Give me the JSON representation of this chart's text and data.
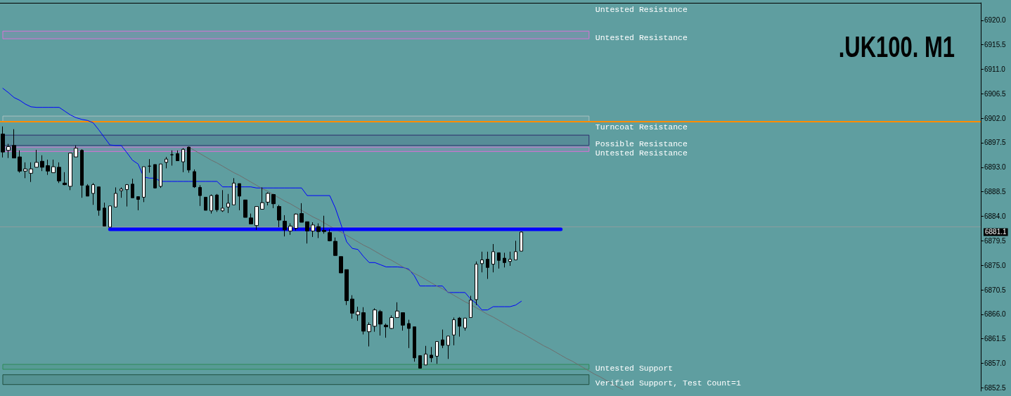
{
  "chart_data": {
    "type": "candlestick",
    "title": ".UK100. M1",
    "categories": [
      null,
      null,
      null,
      null,
      null,
      null,
      null,
      null,
      null,
      null,
      null,
      null,
      null,
      null,
      null,
      null,
      null,
      null,
      null,
      null,
      null,
      null,
      null,
      null,
      null,
      null,
      null,
      null,
      null,
      null,
      null,
      null,
      null,
      null,
      null,
      null,
      null,
      null,
      null,
      null,
      null,
      null,
      null,
      null,
      null,
      null,
      null,
      null,
      null,
      null,
      null,
      null,
      null,
      null,
      null,
      null,
      null,
      null,
      null,
      null,
      null,
      null,
      null,
      null,
      null,
      null,
      null,
      null,
      null,
      null,
      null,
      null,
      null,
      null,
      null,
      null,
      null,
      null,
      null,
      null,
      null,
      null,
      null,
      null,
      null,
      null,
      null,
      null,
      null,
      null,
      null,
      null,
      null,
      null,
      null,
      null,
      null,
      null,
      null,
      null,
      null,
      null,
      null,
      null,
      null,
      null,
      null,
      null,
      null,
      null,
      null,
      null,
      null,
      null,
      null,
      null,
      null,
      null,
      null,
      null,
      null,
      null,
      null,
      null,
      null,
      null,
      null,
      null,
      null,
      null,
      null,
      null,
      null,
      null,
      null,
      null,
      null,
      null,
      null,
      null,
      null,
      null,
      null,
      null,
      null,
      null,
      null,
      null,
      null,
      null,
      null,
      null,
      null,
      null,
      null,
      null,
      null,
      null,
      null,
      null,
      null,
      null,
      null,
      null,
      null,
      null,
      null,
      null,
      null,
      null,
      null,
      null,
      null,
      null
    ],
    "series": [
      {
        "ohlc": [
          [
            6899.1,
            6900.5,
            6894.8,
            6895.8
          ],
          [
            6896.1,
            6897.3,
            6894.7,
            6896.8
          ],
          [
            6897.0,
            6900.0,
            6894.7,
            6894.7
          ],
          [
            6894.9,
            6896.1,
            6892.0,
            6892.3
          ],
          [
            6892.3,
            6893.9,
            6891.0,
            6892.7
          ],
          [
            6891.9,
            6893.9,
            6890.3,
            6892.7
          ],
          [
            6893.0,
            6896.2,
            6893.0,
            6893.9
          ],
          [
            6894.1,
            6895.2,
            6892.3,
            6893.0
          ],
          [
            6893.3,
            6894.4,
            6891.6,
            6892.3
          ],
          [
            6892.0,
            6894.4,
            6892.0,
            6893.1
          ],
          [
            6893.0,
            6893.9,
            6890.1,
            6890.5
          ],
          [
            6890.1,
            6892.1,
            6889.7,
            6889.8
          ],
          [
            6889.5,
            6895.6,
            6888.8,
            6895.6
          ],
          [
            6894.9,
            6897.0,
            6894.9,
            6896.5
          ],
          [
            6896.1,
            6896.3,
            6887.4,
            6889.7
          ],
          [
            6889.6,
            6889.9,
            6887.7,
            6887.7
          ],
          [
            6888.2,
            6890.1,
            6886.1,
            6889.8
          ],
          [
            6889.4,
            6889.4,
            6884.1,
            6885.1
          ],
          [
            6885.5,
            6886.5,
            6882.2,
            6882.2
          ],
          [
            6882.0,
            6885.9,
            6882.0,
            6885.9
          ],
          [
            6885.7,
            6889.3,
            6885.7,
            6888.2
          ],
          [
            6888.7,
            6889.3,
            6887.4,
            6889.0
          ],
          [
            6888.9,
            6889.9,
            6885.8,
            6889.8
          ],
          [
            6889.9,
            6890.9,
            6887.4,
            6887.4
          ],
          [
            6887.6,
            6887.6,
            6885.1,
            6887.1
          ],
          [
            6887.5,
            6893.1,
            6886.6,
            6893.1
          ],
          [
            6893.2,
            6894.5,
            6892.0,
            6893.2
          ],
          [
            6893.5,
            6893.5,
            6889.1,
            6889.2
          ],
          [
            6889.5,
            6893.6,
            6889.2,
            6893.6
          ],
          [
            6893.9,
            6894.9,
            6892.8,
            6894.5
          ],
          [
            6895.3,
            6896.1,
            6893.3,
            6895.3
          ],
          [
            6895.5,
            6896.1,
            6894.2,
            6894.2
          ],
          [
            6894.0,
            6896.5,
            6892.1,
            6896.3
          ],
          [
            6896.7,
            6896.8,
            6892.0,
            6892.5
          ],
          [
            6892.2,
            6892.6,
            6889.2,
            6889.4
          ],
          [
            6889.3,
            6889.7,
            6885.9,
            6887.8
          ],
          [
            6887.5,
            6887.5,
            6885.1,
            6885.1
          ],
          [
            6885.0,
            6888.0,
            6884.5,
            6887.8
          ],
          [
            6887.9,
            6888.1,
            6884.8,
            6885.2
          ],
          [
            6885.0,
            6888.8,
            6884.8,
            6885.5
          ],
          [
            6885.7,
            6888.1,
            6884.6,
            6886.4
          ],
          [
            6886.1,
            6891.0,
            6886.1,
            6890.1
          ],
          [
            6890.0,
            6890.0,
            6885.1,
            6887.7
          ],
          [
            6887.0,
            6887.0,
            6883.8,
            6883.8
          ],
          [
            6883.7,
            6884.5,
            6882.6,
            6882.6
          ],
          [
            6882.3,
            6885.8,
            6881.5,
            6885.8
          ],
          [
            6885.3,
            6889.3,
            6885.3,
            6886.5
          ],
          [
            6886.6,
            6888.4,
            6886.0,
            6888.2
          ],
          [
            6888.0,
            6888.1,
            6885.5,
            6886.3
          ],
          [
            6885.8,
            6886.1,
            6882.0,
            6883.3
          ],
          [
            6883.1,
            6884.2,
            6880.3,
            6881.5
          ],
          [
            6881.3,
            6882.7,
            6880.6,
            6882.2
          ],
          [
            6881.8,
            6884.5,
            6881.4,
            6884.4
          ],
          [
            6884.5,
            6886.4,
            6882.9,
            6882.9
          ],
          [
            6883.0,
            6883.0,
            6879.0,
            6881.3
          ],
          [
            6881.3,
            6882.9,
            6880.2,
            6882.4
          ],
          [
            6882.1,
            6882.7,
            6880.0,
            6881.2
          ],
          [
            6881.4,
            6884.1,
            6880.8,
            6881.2
          ],
          [
            6881.0,
            6881.6,
            6879.4,
            6879.5
          ],
          [
            6879.4,
            6880.1,
            6876.8,
            6876.8
          ],
          [
            6876.6,
            6876.6,
            6873.6,
            6873.6
          ],
          [
            6874.2,
            6874.2,
            6867.7,
            6868.5
          ],
          [
            6868.8,
            6869.5,
            6865.2,
            6866.2
          ],
          [
            6865.9,
            6867.4,
            6864.8,
            6866.5
          ],
          [
            6866.3,
            6867.3,
            6862.3,
            6862.9
          ],
          [
            6862.8,
            6864.5,
            6860.1,
            6864.1
          ],
          [
            6863.8,
            6867.1,
            6862.8,
            6866.8
          ],
          [
            6866.5,
            6866.8,
            6862.1,
            6864.2
          ],
          [
            6864.0,
            6864.3,
            6861.7,
            6863.7
          ],
          [
            6863.4,
            6865.8,
            6863.3,
            6865.4
          ],
          [
            6865.4,
            6868.2,
            6865.4,
            6866.6
          ],
          [
            6866.3,
            6866.3,
            6863.0,
            6864.0
          ],
          [
            6864.3,
            6865.0,
            6859.8,
            6863.4
          ],
          [
            6863.7,
            6863.7,
            6857.3,
            6858.0
          ],
          [
            6858.4,
            6858.4,
            6856.1,
            6856.1
          ],
          [
            6856.7,
            6860.2,
            6856.7,
            6858.7
          ],
          [
            6858.5,
            6860.0,
            6857.2,
            6858.0
          ],
          [
            6858.3,
            6861.0,
            6856.9,
            6861.0
          ],
          [
            6861.3,
            6863.2,
            6859.8,
            6860.3
          ],
          [
            6860.3,
            6862.0,
            6857.8,
            6862.0
          ],
          [
            6862.2,
            6865.4,
            6860.3,
            6865.0
          ],
          [
            6865.3,
            6865.5,
            6861.9,
            6863.8
          ],
          [
            6863.5,
            6865.3,
            6863.0,
            6865.3
          ],
          [
            6865.4,
            6869.4,
            6865.4,
            6868.6
          ],
          [
            6868.7,
            6875.7,
            6867.7,
            6875.2
          ],
          [
            6875.3,
            6877.5,
            6873.7,
            6876.0
          ],
          [
            6876.1,
            6877.5,
            6872.5,
            6874.6
          ],
          [
            6875.2,
            6878.9,
            6873.7,
            6877.5
          ],
          [
            6877.3,
            6877.3,
            6874.4,
            6875.9
          ],
          [
            6876.3,
            6877.3,
            6874.6,
            6875.5
          ],
          [
            6875.7,
            6877.5,
            6874.9,
            6876.1
          ],
          [
            6876.0,
            6879.5,
            6876.0,
            6877.5
          ],
          [
            6877.6,
            6881.2,
            6877.6,
            6881.1
          ],
          null,
          null,
          null,
          null,
          null,
          null,
          null,
          null,
          null,
          null,
          null,
          null,
          null,
          null,
          null,
          null,
          null,
          null,
          null,
          null,
          null,
          null,
          null,
          null,
          null,
          null,
          null,
          null,
          null,
          null,
          null,
          null,
          null,
          null,
          null,
          null,
          null,
          null,
          null,
          null,
          null,
          null,
          null,
          null,
          null,
          null,
          null,
          null,
          null,
          null,
          null,
          null,
          null,
          null,
          null,
          null,
          null,
          null,
          null,
          null,
          null,
          null,
          null,
          null,
          null,
          null,
          null,
          null,
          null,
          null,
          null,
          null,
          null,
          null,
          null,
          null,
          null,
          null,
          null,
          null,
          null
        ],
        "colors": [
          "#000000",
          "#ffffff",
          "#000000",
          "#000000",
          "#ffffff",
          "#ffffff",
          "#ffffff",
          "#000000",
          "#000000",
          "#ffffff",
          "#000000",
          "#000000",
          "#ffffff",
          "#ffffff",
          "#000000",
          "#000000",
          "#ffffff",
          "#000000",
          "#000000",
          "#ffffff",
          "#ffffff",
          "#ffffff",
          "#ffffff",
          "#000000",
          "#000000",
          "#ffffff",
          "#000000",
          "#000000",
          "#ffffff",
          "#ffffff",
          "#000000",
          "#000000",
          "#ffffff",
          "#000000",
          "#000000",
          "#000000",
          "#000000",
          "#ffffff",
          "#000000",
          "#ffffff",
          "#ffffff",
          "#ffffff",
          "#000000",
          "#000000",
          "#000000",
          "#ffffff",
          "#ffffff",
          "#ffffff",
          "#000000",
          "#000000",
          "#000000",
          "#ffffff",
          "#ffffff",
          "#000000",
          "#000000",
          "#ffffff",
          "#000000",
          "#000000",
          "#000000",
          "#000000",
          "#000000",
          "#000000",
          "#000000",
          "#ffffff",
          "#000000",
          "#ffffff",
          "#ffffff",
          "#000000",
          "#000000",
          "#ffffff",
          "#ffffff",
          "#000000",
          "#000000",
          "#000000",
          "#000000",
          "#ffffff",
          "#000000",
          "#ffffff",
          "#000000",
          "#ffffff",
          "#ffffff",
          "#000000",
          "#ffffff",
          "#ffffff",
          "#ffffff",
          "#ffffff",
          "#000000",
          "#ffffff",
          "#000000",
          "#000000",
          "#ffffff",
          "#ffffff",
          "#ffffff",
          null,
          null,
          null,
          null,
          null,
          null,
          null,
          null,
          null,
          null,
          null,
          null,
          null,
          null,
          null,
          null,
          null,
          null,
          null,
          null,
          null,
          null,
          null,
          null,
          null,
          null,
          null,
          null,
          null,
          null,
          null,
          null,
          null,
          null,
          null,
          null,
          null,
          null,
          null,
          null,
          null,
          null,
          null,
          null,
          null,
          null,
          null,
          null,
          null,
          null,
          null,
          null,
          null,
          null,
          null,
          null,
          null,
          null,
          null,
          null,
          null,
          null,
          null,
          null,
          null,
          null,
          null,
          null,
          null,
          null,
          null,
          null,
          null,
          null,
          null,
          null,
          null,
          null,
          null,
          null,
          null
        ]
      },
      {
        "type": "line",
        "color": "#0000ff",
        "values": [
          6907.5,
          6906.7,
          6905.8,
          6905.3,
          6904.6,
          6904.1,
          6904.0,
          6904.0,
          6904.0,
          6904.0,
          6904.0,
          6903.3,
          6902.6,
          6902.1,
          6901.8,
          6901.6,
          6901.2,
          6899.9,
          6898.5,
          6897.1,
          6897.0,
          6897.0,
          6895.7,
          6894.3,
          6893.6,
          6891.2,
          6891.0,
          6891.0,
          6890.4,
          6890.4,
          6890.4,
          6890.4,
          6890.4,
          6890.4,
          6890.4,
          6890.4,
          6890.4,
          6890.4,
          6890.4,
          6889.4,
          6889.4,
          6889.4,
          6889.4,
          6889.4,
          6889.4,
          6889.2,
          6889.2,
          6889.2,
          6889.2,
          6889.2,
          6889.2,
          6889.2,
          6889.2,
          6889.2,
          6887.8,
          6887.8,
          6887.8,
          6887.8,
          6887.8,
          6885.5,
          6882.5,
          6879.3,
          6878.1,
          6877.9,
          6876.6,
          6875.5,
          6875.5,
          6875.1,
          6874.7,
          6874.7,
          6874.7,
          6874.6,
          6874.3,
          6873.1,
          6871.2,
          6871.2,
          6871.2,
          6871.2,
          6871.2,
          6870.0,
          6870.0,
          6870.0,
          6870.0,
          6868.8,
          6868.0,
          6866.8,
          6866.8,
          6867.4,
          6867.4,
          6867.4,
          6867.4,
          6867.7,
          6868.4,
          null,
          null,
          null,
          null,
          null,
          null,
          null,
          null,
          null,
          null,
          null,
          null,
          null,
          null,
          null,
          null,
          null,
          null,
          null,
          null,
          null,
          null,
          null,
          null,
          null,
          null,
          null,
          null,
          null,
          null,
          null,
          null,
          null,
          null,
          null,
          null,
          null,
          null,
          null,
          null,
          null,
          null,
          null,
          null,
          null,
          null,
          null,
          null,
          null,
          null,
          null,
          null,
          null,
          null,
          null,
          null,
          null,
          null,
          null,
          null,
          null,
          null,
          null,
          null,
          null,
          null,
          null,
          null,
          null,
          null,
          null,
          null,
          null,
          null,
          null,
          null,
          null,
          null,
          null,
          null,
          null
        ]
      },
      {
        "type": "line",
        "color": "#6e6e6e",
        "values": [
          null,
          null,
          null,
          null,
          null,
          null,
          null,
          null,
          null,
          null,
          null,
          null,
          null,
          null,
          null,
          null,
          null,
          null,
          null,
          null,
          null,
          null,
          null,
          null,
          null,
          null,
          null,
          null,
          null,
          null,
          null,
          null,
          null,
          6896.7,
          6896.1,
          6895.5,
          6894.9,
          6894.3,
          6893.8,
          6893.2,
          6892.6,
          6892.0,
          6891.5,
          6890.9,
          6890.3,
          6889.7,
          6889.1,
          6888.6,
          6888.0,
          6887.4,
          6886.8,
          6886.3,
          6885.7,
          6885.1,
          6884.5,
          6883.9,
          6883.4,
          6882.8,
          6882.2,
          6881.6,
          6881.1,
          6880.5,
          6879.9,
          6879.3,
          6878.7,
          6878.2,
          6877.6,
          6877.0,
          6876.4,
          6875.9,
          6875.3,
          6874.7,
          6874.1,
          6873.5,
          6873.0,
          6872.4,
          6871.8,
          6871.2,
          6870.7,
          6870.1,
          6869.5,
          6868.9,
          6868.3,
          6867.8,
          6867.2,
          6866.6,
          6866.0,
          6865.5,
          6864.9,
          6864.3,
          6863.7,
          6863.1,
          6862.6,
          6862.0,
          6861.4,
          6860.8,
          6860.2,
          6859.7,
          6859.1,
          6858.5,
          6857.9,
          6857.4,
          6856.8,
          6856.2,
          6855.6,
          6855.0,
          6854.5,
          6853.9,
          6853.3,
          6852.7,
          6852.2,
          null,
          null,
          null,
          null,
          null,
          null,
          null,
          null,
          null,
          null,
          null,
          null,
          null,
          null,
          null,
          null,
          null,
          null,
          null,
          null,
          null,
          null,
          null,
          null,
          null,
          null,
          null,
          null,
          null,
          null,
          null,
          null,
          null,
          null,
          null,
          null,
          null,
          null,
          null,
          null,
          null,
          null,
          null,
          null,
          null,
          null,
          null,
          null,
          null,
          null,
          null,
          null,
          null,
          null,
          null,
          null,
          null,
          null,
          null,
          null,
          null,
          null,
          null
        ]
      },
      {
        "type": "line",
        "color": "#0000ff",
        "values": [
          null,
          null,
          null,
          null,
          null,
          null,
          null,
          null,
          null,
          null,
          null,
          null,
          null,
          null,
          null,
          null,
          null,
          null,
          null,
          6881.6,
          6881.6,
          6881.6,
          6881.6,
          6881.6,
          6881.6,
          6881.6,
          6881.6,
          6881.6,
          6881.6,
          6881.6,
          6881.6,
          6881.6,
          6881.6,
          6881.6,
          6881.6,
          6881.6,
          6881.6,
          6881.6,
          6881.6,
          6881.6,
          6881.6,
          6881.6,
          6881.6,
          6881.6,
          6881.6,
          6881.6,
          6881.6,
          6881.6,
          6881.6,
          6881.6,
          6881.6,
          6881.6,
          6881.6,
          6881.6,
          6881.6,
          6881.6,
          6881.6,
          6881.6,
          6881.6,
          6881.6,
          6881.6,
          6881.6,
          6881.6,
          6881.6,
          6881.6,
          6881.6,
          6881.6,
          6881.6,
          6881.6,
          6881.6,
          6881.6,
          6881.6,
          6881.6,
          6881.6,
          6881.6,
          6881.6,
          6881.6,
          6881.6,
          6881.6,
          6881.6,
          6881.6,
          6881.6,
          6881.6,
          6881.6,
          6881.6,
          6881.6,
          6881.6,
          6881.6,
          6881.6,
          6881.6,
          6881.6,
          6881.6,
          6881.6,
          6881.6,
          6881.6,
          6881.6,
          6881.6,
          6881.6,
          6881.6,
          6881.6,
          null,
          null,
          null,
          null,
          null,
          null,
          null,
          null,
          null,
          null,
          null,
          null,
          null,
          null,
          null,
          null,
          null,
          null,
          null,
          null,
          null,
          null,
          null,
          null,
          null,
          null,
          null,
          null,
          null,
          null,
          null,
          null,
          null,
          null,
          null,
          null,
          null,
          null,
          null,
          null,
          null,
          null,
          null,
          null,
          null,
          null,
          null,
          null,
          null,
          null,
          null,
          null,
          null,
          null,
          null,
          null,
          null,
          null,
          null,
          null,
          null,
          null,
          null,
          null,
          null,
          null,
          null,
          null,
          null,
          null,
          null,
          null,
          null,
          null
        ]
      }
    ],
    "ylim": [
      6851.9,
      6923.2
    ],
    "yticks": [
      {
        "value": 6920,
        "label": "6920.0"
      },
      6915.5,
      {
        "value": 6911,
        "label": "6911.0"
      },
      6906.5,
      {
        "value": 6902,
        "label": "6902.0"
      },
      6897.5,
      {
        "value": 6893,
        "label": "6893.0"
      },
      6888.5,
      {
        "value": 6884,
        "label": "6884.0"
      },
      6879.5,
      {
        "value": 6875,
        "label": "6875.0"
      },
      6870.5,
      {
        "value": 6866,
        "label": "6866.0"
      },
      6861.5,
      {
        "value": 6857,
        "label": "6857.0"
      },
      6852.5
    ],
    "tick_labels": "y",
    "marker": "none",
    "line_style": "solid",
    "ref_lines": [
      {
        "axis": "y",
        "value": 6901.4,
        "color": "#ff8c00"
      },
      {
        "axis": "y",
        "value": 6882.1,
        "color": "#8c9c9e"
      }
    ],
    "bands": [
      {
        "axis": "y",
        "from": 6916.6,
        "to": 6918.0,
        "label": "Untested Resistance",
        "color": "#da70d6"
      },
      {
        "axis": "y",
        "from": 6901.3,
        "to": 6902.4,
        "label": "Turncoat Resistance",
        "color": "#a9c1c1"
      },
      {
        "axis": "y",
        "from": 6897.0,
        "to": 6898.9,
        "label": "Possible Resistance",
        "color": "#2c2c6c"
      },
      {
        "axis": "y",
        "from": 6895.9,
        "to": 6896.7,
        "label": "Untested Resistance",
        "color": "#da70d6"
      },
      {
        "axis": "y",
        "from": 6855.9,
        "to": 6856.8,
        "label": "Untested Support",
        "color": "#2e8b57"
      },
      {
        "axis": "y",
        "from": 6853.1,
        "to": 6854.9,
        "label": "Verified Support, Test Count=1",
        "color": "#1f4f3f"
      }
    ],
    "annotations": [
      "Untested Resistance",
      "6881.1"
    ]
  }
}
